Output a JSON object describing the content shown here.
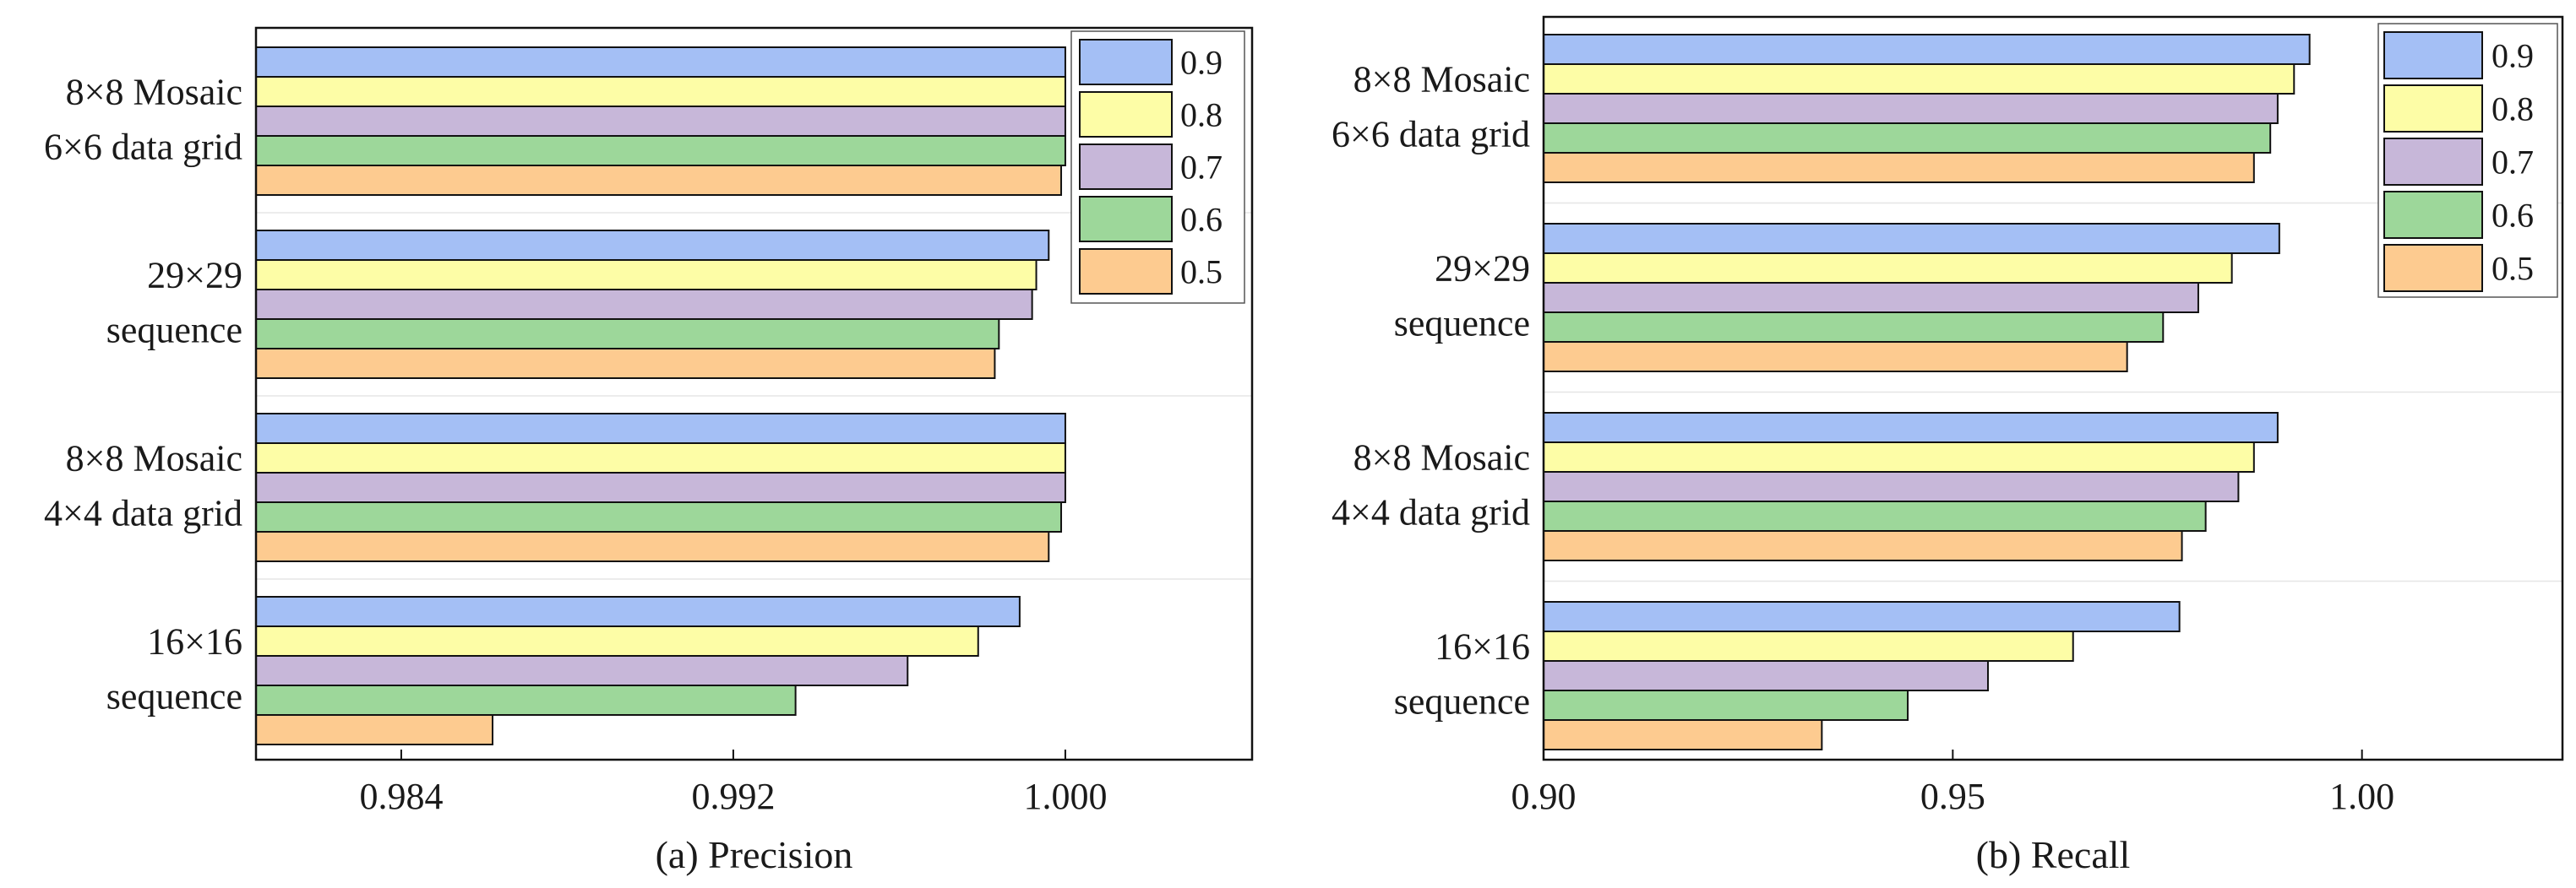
{
  "chart_data": [
    {
      "type": "bar",
      "orientation": "horizontal",
      "xlabel": "(a) Precision",
      "categories": [
        [
          "8×8 Mosaic",
          "6×6 data grid"
        ],
        [
          "29×29",
          "sequence"
        ],
        [
          "8×8 Mosaic",
          "4×4 data grid"
        ],
        [
          "16×16",
          "sequence"
        ]
      ],
      "series": [
        {
          "name": "0.9",
          "color": "#a4bff5",
          "values": [
            1.0,
            0.9996,
            1.0,
            0.9989
          ]
        },
        {
          "name": "0.8",
          "color": "#fdfda6",
          "values": [
            1.0,
            0.9993,
            1.0,
            0.9979
          ]
        },
        {
          "name": "0.7",
          "color": "#c7b7d9",
          "values": [
            1.0,
            0.9992,
            1.0,
            0.9962
          ]
        },
        {
          "name": "0.6",
          "color": "#9dd79a",
          "values": [
            1.0,
            0.9984,
            0.9999,
            0.9935
          ]
        },
        {
          "name": "0.5",
          "color": "#fdcb90",
          "values": [
            0.9999,
            0.9983,
            0.9996,
            0.9862
          ]
        }
      ],
      "xlim": [
        0.9805,
        1.0045
      ],
      "xticks": [
        0.984,
        0.992,
        1.0
      ],
      "xtick_labels": [
        "0.984",
        "0.992",
        "1.000"
      ],
      "legend_position": "top-right",
      "grid": false
    },
    {
      "type": "bar",
      "orientation": "horizontal",
      "xlabel": "(b) Recall",
      "categories": [
        [
          "8×8 Mosaic",
          "6×6 data grid"
        ],
        [
          "29×29",
          "sequence"
        ],
        [
          "8×8 Mosaic",
          "4×4 data grid"
        ],
        [
          "16×16",
          "sequence"
        ]
      ],
      "series": [
        {
          "name": "0.9",
          "color": "#a4bff5",
          "values": [
            0.9936,
            0.9899,
            0.9897,
            0.9777
          ]
        },
        {
          "name": "0.8",
          "color": "#fdfda6",
          "values": [
            0.9917,
            0.9841,
            0.9868,
            0.9647
          ]
        },
        {
          "name": "0.7",
          "color": "#c7b7d9",
          "values": [
            0.9897,
            0.98,
            0.9849,
            0.9543
          ]
        },
        {
          "name": "0.6",
          "color": "#9dd79a",
          "values": [
            0.9888,
            0.9757,
            0.9809,
            0.9445
          ]
        },
        {
          "name": "0.5",
          "color": "#fdcb90",
          "values": [
            0.9868,
            0.9713,
            0.978,
            0.934
          ]
        }
      ],
      "xlim": [
        0.9,
        1.0245
      ],
      "xticks": [
        0.9,
        0.95,
        1.0
      ],
      "xtick_labels": [
        "0.90",
        "0.95",
        "1.00"
      ],
      "legend_position": "top-right",
      "grid": false
    }
  ]
}
